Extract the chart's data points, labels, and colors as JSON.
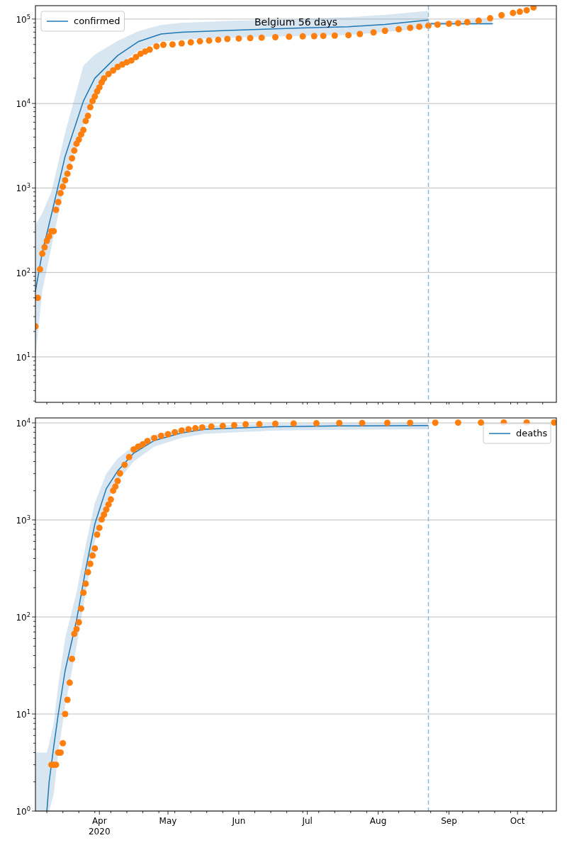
{
  "chart_data": [
    {
      "type": "line",
      "title": "Belgium 56 days",
      "log": true,
      "grid": "y",
      "legend": "top left",
      "tick_labels": "y",
      "xlim": [
        "2020-03-04",
        "2020-10-18"
      ],
      "xticks": [
        {
          "value": "2020-03-09",
          "label": null
        },
        {
          "value": "2020-03-16",
          "label": null
        },
        {
          "value": "2020-03-23",
          "label": null
        },
        {
          "value": "2020-03-30",
          "label": null
        },
        {
          "value": "2020-04-01",
          "label": null
        },
        {
          "value": "2020-04-06",
          "label": null
        },
        {
          "value": "2020-04-13",
          "label": null
        },
        {
          "value": "2020-04-20",
          "label": null
        },
        {
          "value": "2020-04-27",
          "label": null
        },
        {
          "value": "2020-05-01",
          "label": null
        },
        {
          "value": "2020-05-04",
          "label": null
        },
        {
          "value": "2020-05-11",
          "label": null
        },
        {
          "value": "2020-05-18",
          "label": null
        },
        {
          "value": "2020-05-25",
          "label": null
        },
        {
          "value": "2020-06-01",
          "label": null
        },
        {
          "value": "2020-06-08",
          "label": null
        },
        {
          "value": "2020-06-15",
          "label": null
        },
        {
          "value": "2020-06-22",
          "label": null
        },
        {
          "value": "2020-06-29",
          "label": null
        },
        {
          "value": "2020-07-01",
          "label": null
        },
        {
          "value": "2020-07-06",
          "label": null
        },
        {
          "value": "2020-07-13",
          "label": null
        },
        {
          "value": "2020-07-20",
          "label": null
        },
        {
          "value": "2020-07-27",
          "label": null
        },
        {
          "value": "2020-08-01",
          "label": null
        },
        {
          "value": "2020-08-03",
          "label": null
        },
        {
          "value": "2020-08-10",
          "label": null
        },
        {
          "value": "2020-08-17",
          "label": null
        },
        {
          "value": "2020-08-24",
          "label": null
        },
        {
          "value": "2020-08-31",
          "label": null
        },
        {
          "value": "2020-09-01",
          "label": null
        },
        {
          "value": "2020-09-07",
          "label": null
        },
        {
          "value": "2020-09-14",
          "label": null
        },
        {
          "value": "2020-09-21",
          "label": null
        },
        {
          "value": "2020-09-28",
          "label": null
        },
        {
          "value": "2020-10-01",
          "label": null
        },
        {
          "value": "2020-10-05",
          "label": null
        },
        {
          "value": "2020-10-12",
          "label": null
        }
      ],
      "ylim": [
        2.9,
        144000
      ],
      "yticks": [
        {
          "value": 3,
          "label": null
        },
        {
          "value": 4,
          "label": null
        },
        {
          "value": 5,
          "label": null
        },
        {
          "value": 6,
          "label": null
        },
        {
          "value": 7,
          "label": null
        },
        {
          "value": 8,
          "label": null
        },
        {
          "value": 9,
          "label": null
        },
        {
          "value": 10,
          "label": "10$^{1}$"
        },
        {
          "value": 20,
          "label": null
        },
        {
          "value": 30,
          "label": null
        },
        {
          "value": 40,
          "label": null
        },
        {
          "value": 50,
          "label": null
        },
        {
          "value": 60,
          "label": null
        },
        {
          "value": 70,
          "label": null
        },
        {
          "value": 80,
          "label": null
        },
        {
          "value": 90,
          "label": null
        },
        {
          "value": 100,
          "label": "10$^{2}$"
        },
        {
          "value": 200,
          "label": null
        },
        {
          "value": 300,
          "label": null
        },
        {
          "value": 400,
          "label": null
        },
        {
          "value": 500,
          "label": null
        },
        {
          "value": 600,
          "label": null
        },
        {
          "value": 700,
          "label": null
        },
        {
          "value": 800,
          "label": null
        },
        {
          "value": 900,
          "label": null
        },
        {
          "value": 1000,
          "label": "10$^{3}$"
        },
        {
          "value": 2000,
          "label": null
        },
        {
          "value": 3000,
          "label": null
        },
        {
          "value": 4000,
          "label": null
        },
        {
          "value": 5000,
          "label": null
        },
        {
          "value": 6000,
          "label": null
        },
        {
          "value": 7000,
          "label": null
        },
        {
          "value": 8000,
          "label": null
        },
        {
          "value": 9000,
          "label": null
        },
        {
          "value": 10000,
          "label": "10$^{4}$"
        },
        {
          "value": 20000,
          "label": null
        },
        {
          "value": 30000,
          "label": null
        },
        {
          "value": 40000,
          "label": null
        },
        {
          "value": 50000,
          "label": null
        },
        {
          "value": 60000,
          "label": null
        },
        {
          "value": 70000,
          "label": null
        },
        {
          "value": 80000,
          "label": null
        },
        {
          "value": 90000,
          "label": null
        },
        {
          "value": 100000,
          "label": "10$^{5}$"
        }
      ],
      "ref_lines": [
        {
          "axis": "x",
          "value": "2020-08-23",
          "label": null,
          "color": "#8fbbd9",
          "line_style": "dashed"
        }
      ],
      "series": [
        {
          "name": "confirmed",
          "color": "#1f77b4",
          "x": [
            "2020-03-04",
            "2020-03-07",
            "2020-03-11",
            "2020-03-17",
            "2020-03-25",
            "2020-03-30",
            "2020-04-09",
            "2020-04-18",
            "2020-04-28",
            "2020-05-07",
            "2020-05-27",
            "2020-06-28",
            "2020-07-19",
            "2020-08-04",
            "2020-08-23"
          ],
          "values": [
            60,
            173,
            484,
            2370,
            10700,
            19950,
            37000,
            54000,
            66600,
            69700,
            73300,
            78300,
            81100,
            86500,
            97500
          ],
          "lower": [
            10,
            60,
            200,
            1200,
            5500,
            13000,
            28000,
            42000,
            54000,
            57000,
            60000,
            63000,
            65000,
            70000,
            78000
          ],
          "upper": [
            370,
            500,
            900,
            4500,
            28000,
            38000,
            55000,
            72000,
            85000,
            90000,
            95000,
            100000,
            105000,
            112000,
            125000
          ]
        },
        {
          "color": "#1f77b4",
          "x": [
            "2020-08-24",
            "2020-09-20"
          ],
          "values": [
            88000,
            88000
          ],
          "lower": [
            85000,
            85000
          ],
          "upper": [
            92000,
            100000
          ]
        },
        {
          "type": "scatter",
          "marker": "circle",
          "color": "#ff7f0e",
          "x": [
            "2020-03-04",
            "2020-03-05",
            "2020-03-06",
            "2020-03-07",
            "2020-03-08",
            "2020-03-09",
            "2020-03-10",
            "2020-03-11",
            "2020-03-12",
            "2020-03-13",
            "2020-03-14",
            "2020-03-15",
            "2020-03-16",
            "2020-03-17",
            "2020-03-18",
            "2020-03-19",
            "2020-03-20",
            "2020-03-21",
            "2020-03-22",
            "2020-03-23",
            "2020-03-24",
            "2020-03-25",
            "2020-03-26",
            "2020-03-27",
            "2020-03-28",
            "2020-03-29",
            "2020-03-30",
            "2020-03-31",
            "2020-04-01",
            "2020-04-02",
            "2020-04-03",
            "2020-04-05",
            "2020-04-07",
            "2020-04-09",
            "2020-04-11",
            "2020-04-13",
            "2020-04-15",
            "2020-04-17",
            "2020-04-19",
            "2020-04-21",
            "2020-04-23",
            "2020-04-26",
            "2020-04-29",
            "2020-05-03",
            "2020-05-07",
            "2020-05-11",
            "2020-05-15",
            "2020-05-19",
            "2020-05-23",
            "2020-05-27",
            "2020-06-01",
            "2020-06-06",
            "2020-06-11",
            "2020-06-17",
            "2020-06-23",
            "2020-06-29",
            "2020-07-04",
            "2020-07-08",
            "2020-07-13",
            "2020-07-19",
            "2020-07-24",
            "2020-07-30",
            "2020-08-04",
            "2020-08-10",
            "2020-08-15",
            "2020-08-19",
            "2020-08-23",
            "2020-08-27",
            "2020-09-01",
            "2020-09-05",
            "2020-09-09",
            "2020-09-14",
            "2020-09-19",
            "2020-09-24",
            "2020-09-29",
            "2020-10-02",
            "2020-10-05",
            "2020-10-08"
          ],
          "values": [
            23,
            50,
            109,
            167,
            199,
            237,
            267,
            308,
            308,
            551,
            680,
            869,
            1035,
            1233,
            1472,
            1778,
            2243,
            2770,
            3340,
            3740,
            4300,
            4850,
            6210,
            7140,
            9060,
            10700,
            12100,
            13900,
            15500,
            17800,
            19800,
            22300,
            24600,
            27100,
            29000,
            30800,
            32300,
            35500,
            38800,
            41300,
            43500,
            47500,
            49500,
            50000,
            51500,
            53000,
            54500,
            55600,
            56800,
            58100,
            58800,
            59500,
            60200,
            61000,
            61800,
            62400,
            62800,
            63200,
            63700,
            64400,
            66500,
            69500,
            72500,
            75800,
            78800,
            81000,
            83500,
            86000,
            88000,
            89500,
            92000,
            95700,
            102000,
            111000,
            118000,
            122000,
            127000,
            137000
          ]
        }
      ]
    },
    {
      "type": "line",
      "log": true,
      "grid": "y",
      "legend": "top right",
      "xlim": [
        "2020-03-04",
        "2020-10-18"
      ],
      "xticks": [
        {
          "value": "2020-03-09",
          "label": null
        },
        {
          "value": "2020-03-16",
          "label": null
        },
        {
          "value": "2020-03-23",
          "label": null
        },
        {
          "value": "2020-03-30",
          "label": null
        },
        {
          "value": "2020-04-01",
          "label": "Apr\n2020"
        },
        {
          "value": "2020-04-06",
          "label": null
        },
        {
          "value": "2020-04-13",
          "label": null
        },
        {
          "value": "2020-04-20",
          "label": null
        },
        {
          "value": "2020-04-27",
          "label": null
        },
        {
          "value": "2020-05-01",
          "label": "May"
        },
        {
          "value": "2020-05-04",
          "label": null
        },
        {
          "value": "2020-05-11",
          "label": null
        },
        {
          "value": "2020-05-18",
          "label": null
        },
        {
          "value": "2020-05-25",
          "label": null
        },
        {
          "value": "2020-06-01",
          "label": "Jun"
        },
        {
          "value": "2020-06-08",
          "label": null
        },
        {
          "value": "2020-06-15",
          "label": null
        },
        {
          "value": "2020-06-22",
          "label": null
        },
        {
          "value": "2020-06-29",
          "label": null
        },
        {
          "value": "2020-07-01",
          "label": "Jul"
        },
        {
          "value": "2020-07-06",
          "label": null
        },
        {
          "value": "2020-07-13",
          "label": null
        },
        {
          "value": "2020-07-20",
          "label": null
        },
        {
          "value": "2020-07-27",
          "label": null
        },
        {
          "value": "2020-08-01",
          "label": "Aug"
        },
        {
          "value": "2020-08-03",
          "label": null
        },
        {
          "value": "2020-08-10",
          "label": null
        },
        {
          "value": "2020-08-17",
          "label": null
        },
        {
          "value": "2020-08-24",
          "label": null
        },
        {
          "value": "2020-08-31",
          "label": null
        },
        {
          "value": "2020-09-01",
          "label": "Sep"
        },
        {
          "value": "2020-09-07",
          "label": null
        },
        {
          "value": "2020-09-14",
          "label": null
        },
        {
          "value": "2020-09-21",
          "label": null
        },
        {
          "value": "2020-09-28",
          "label": null
        },
        {
          "value": "2020-10-01",
          "label": "Oct"
        },
        {
          "value": "2020-10-05",
          "label": null
        },
        {
          "value": "2020-10-12",
          "label": null
        }
      ],
      "ylim": [
        1,
        11250
      ],
      "yticks": [
        {
          "value": 1,
          "label": "10$^{0}$"
        },
        {
          "value": 2,
          "label": null
        },
        {
          "value": 3,
          "label": null
        },
        {
          "value": 4,
          "label": null
        },
        {
          "value": 5,
          "label": null
        },
        {
          "value": 6,
          "label": null
        },
        {
          "value": 7,
          "label": null
        },
        {
          "value": 8,
          "label": null
        },
        {
          "value": 9,
          "label": null
        },
        {
          "value": 10,
          "label": "10$^{1}$"
        },
        {
          "value": 20,
          "label": null
        },
        {
          "value": 30,
          "label": null
        },
        {
          "value": 40,
          "label": null
        },
        {
          "value": 50,
          "label": null
        },
        {
          "value": 60,
          "label": null
        },
        {
          "value": 70,
          "label": null
        },
        {
          "value": 80,
          "label": null
        },
        {
          "value": 90,
          "label": null
        },
        {
          "value": 100,
          "label": "10$^{2}$"
        },
        {
          "value": 200,
          "label": null
        },
        {
          "value": 300,
          "label": null
        },
        {
          "value": 400,
          "label": null
        },
        {
          "value": 500,
          "label": null
        },
        {
          "value": 600,
          "label": null
        },
        {
          "value": 700,
          "label": null
        },
        {
          "value": 800,
          "label": null
        },
        {
          "value": 900,
          "label": null
        },
        {
          "value": 1000,
          "label": "10$^{3}$"
        },
        {
          "value": 2000,
          "label": null
        },
        {
          "value": 3000,
          "label": null
        },
        {
          "value": 4000,
          "label": null
        },
        {
          "value": 5000,
          "label": null
        },
        {
          "value": 6000,
          "label": null
        },
        {
          "value": 7000,
          "label": null
        },
        {
          "value": 8000,
          "label": null
        },
        {
          "value": 9000,
          "label": null
        },
        {
          "value": 10000,
          "label": "10$^{4}$"
        }
      ],
      "ref_lines": [
        {
          "axis": "x",
          "value": "2020-08-23",
          "label": null,
          "color": "#8fbbd9",
          "line_style": "dashed"
        }
      ],
      "series": [
        {
          "name": "deaths",
          "color": "#1f77b4",
          "x": [
            "2020-03-04",
            "2020-03-09",
            "2020-03-10",
            "2020-03-12",
            "2020-03-14",
            "2020-03-17",
            "2020-03-22",
            "2020-03-26",
            "2020-03-30",
            "2020-04-04",
            "2020-04-09",
            "2020-04-16",
            "2020-04-25",
            "2020-05-07",
            "2020-05-17",
            "2020-06-15",
            "2020-07-15",
            "2020-08-23"
          ],
          "values": [
            null,
            1,
            2,
            4.6,
            10,
            28,
            93,
            309,
            908,
            2100,
            3200,
            4870,
            6580,
            7870,
            8610,
            9100,
            9300,
            9400
          ],
          "lower": [
            1,
            1,
            1,
            1.5,
            4,
            12,
            50,
            180,
            600,
            1500,
            2500,
            4000,
            5700,
            7000,
            7700,
            8300,
            8500,
            8600
          ],
          "upper": [
            4,
            4,
            5,
            8,
            20,
            60,
            180,
            550,
            1500,
            3000,
            4300,
            5800,
            7500,
            8700,
            9300,
            9800,
            9900,
            10000
          ]
        },
        {
          "type": "scatter",
          "marker": "circle",
          "color": "#ff7f0e",
          "x": [
            "2020-03-11",
            "2020-03-12",
            "2020-03-13",
            "2020-03-14",
            "2020-03-15",
            "2020-03-16",
            "2020-03-17",
            "2020-03-18",
            "2020-03-19",
            "2020-03-20",
            "2020-03-21",
            "2020-03-22",
            "2020-03-23",
            "2020-03-24",
            "2020-03-25",
            "2020-03-26",
            "2020-03-27",
            "2020-03-28",
            "2020-03-29",
            "2020-03-30",
            "2020-03-31",
            "2020-04-01",
            "2020-04-02",
            "2020-04-03",
            "2020-04-04",
            "2020-04-05",
            "2020-04-06",
            "2020-04-07",
            "2020-04-08",
            "2020-04-09",
            "2020-04-10",
            "2020-04-12",
            "2020-04-14",
            "2020-04-16",
            "2020-04-18",
            "2020-04-20",
            "2020-04-22",
            "2020-04-25",
            "2020-04-28",
            "2020-05-01",
            "2020-05-04",
            "2020-05-07",
            "2020-05-10",
            "2020-05-13",
            "2020-05-16",
            "2020-05-20",
            "2020-05-25",
            "2020-05-30",
            "2020-06-04",
            "2020-06-10",
            "2020-06-17",
            "2020-06-25",
            "2020-07-05",
            "2020-07-15",
            "2020-07-25",
            "2020-08-05",
            "2020-08-15",
            "2020-08-26",
            "2020-09-05",
            "2020-09-15",
            "2020-09-25",
            "2020-10-05",
            "2020-10-17"
          ],
          "values": [
            3,
            3,
            3,
            4,
            4,
            5,
            10,
            14,
            21,
            37,
            67,
            75,
            88,
            122,
            178,
            220,
            289,
            353,
            430,
            508,
            705,
            829,
            1011,
            1135,
            1280,
            1443,
            1625,
            2004,
            2208,
            2520,
            3015,
            3700,
            4440,
            5330,
            5700,
            6010,
            6500,
            6980,
            7350,
            7640,
            8000,
            8350,
            8600,
            8800,
            8980,
            9150,
            9300,
            9450,
            9670,
            9700,
            9800,
            9850,
            9900,
            9950,
            9970,
            10000,
            10020,
            10050,
            10060,
            10070,
            10080,
            10080,
            10090
          ]
        }
      ]
    }
  ]
}
